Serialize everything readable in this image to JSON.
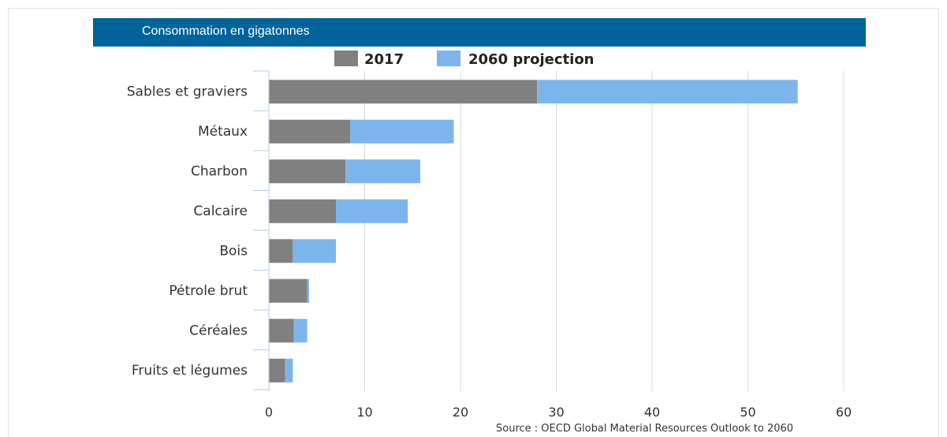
{
  "header": {
    "title": "Consommation en gigatonnes"
  },
  "source": "Source : OECD Global Material Resources Outlook to 2060",
  "colors": {
    "title_bar": "#00639a",
    "series_2017": "#808080",
    "series_2060": "#7cb5ec",
    "gridline": "#d8d8d8",
    "axis": "#b8cce4"
  },
  "chart_data": {
    "type": "bar",
    "orientation": "horizontal",
    "stacked": true,
    "title": "Consommation en gigatonnes",
    "xlabel": "",
    "ylabel": "",
    "xlim": [
      0,
      60
    ],
    "ticks": [
      0,
      10,
      20,
      30,
      40,
      50,
      60
    ],
    "grid": true,
    "legend_position": "top",
    "categories": [
      "Sables et graviers",
      "Métaux",
      "Charbon",
      "Calcaire",
      "Bois",
      "Pétrole brut",
      "Céréales",
      "Fruits et légumes"
    ],
    "series": [
      {
        "name": "2017",
        "values": [
          28,
          8.5,
          8,
          7,
          2.5,
          4,
          2.6,
          1.7
        ]
      },
      {
        "name": "2060 projection",
        "values": [
          27.2,
          10.8,
          7.8,
          7.5,
          4.5,
          0.2,
          1.4,
          0.8
        ]
      }
    ]
  }
}
